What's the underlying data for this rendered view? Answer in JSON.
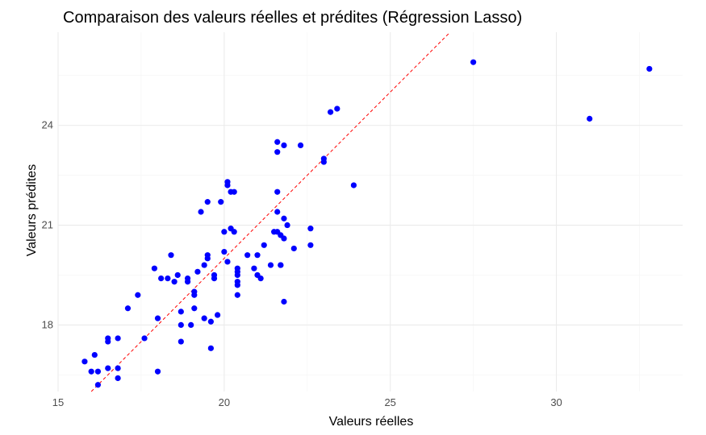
{
  "chart_data": {
    "type": "scatter",
    "title": "Comparaison des valeurs réelles et prédites (Régression Lasso)",
    "xlabel": "Valeurs réelles",
    "ylabel": "Valeurs prédites",
    "xlim": [
      15.0,
      33.8
    ],
    "ylim": [
      16.0,
      26.8
    ],
    "xticks": [
      15,
      20,
      25,
      30
    ],
    "yticks": [
      18,
      21,
      24
    ],
    "grid": true,
    "point_color": "#0000ff",
    "reference_line": {
      "type": "identity",
      "color": "#ff0000",
      "style": "dashed"
    },
    "points": [
      [
        15.8,
        16.9
      ],
      [
        16.0,
        16.6
      ],
      [
        16.1,
        17.1
      ],
      [
        16.2,
        16.6
      ],
      [
        16.2,
        16.2
      ],
      [
        16.5,
        17.6
      ],
      [
        16.5,
        17.5
      ],
      [
        16.5,
        16.7
      ],
      [
        16.8,
        16.7
      ],
      [
        16.8,
        16.4
      ],
      [
        16.8,
        17.6
      ],
      [
        17.1,
        18.5
      ],
      [
        17.4,
        18.9
      ],
      [
        17.6,
        17.6
      ],
      [
        17.9,
        19.7
      ],
      [
        18.0,
        18.2
      ],
      [
        18.0,
        16.6
      ],
      [
        18.1,
        19.4
      ],
      [
        18.3,
        19.4
      ],
      [
        18.4,
        20.1
      ],
      [
        18.5,
        19.3
      ],
      [
        18.6,
        19.5
      ],
      [
        18.7,
        18.4
      ],
      [
        18.7,
        18.0
      ],
      [
        18.7,
        17.5
      ],
      [
        18.9,
        19.3
      ],
      [
        18.9,
        19.4
      ],
      [
        19.0,
        18.0
      ],
      [
        19.1,
        19.0
      ],
      [
        19.1,
        18.9
      ],
      [
        19.1,
        18.5
      ],
      [
        19.2,
        19.6
      ],
      [
        19.3,
        21.4
      ],
      [
        19.4,
        18.2
      ],
      [
        19.4,
        19.8
      ],
      [
        19.5,
        20.0
      ],
      [
        19.5,
        21.7
      ],
      [
        19.5,
        20.1
      ],
      [
        19.6,
        17.3
      ],
      [
        19.6,
        18.1
      ],
      [
        19.7,
        19.4
      ],
      [
        19.7,
        19.5
      ],
      [
        19.8,
        18.3
      ],
      [
        19.9,
        21.7
      ],
      [
        20.0,
        20.8
      ],
      [
        20.0,
        20.2
      ],
      [
        20.1,
        22.3
      ],
      [
        20.1,
        22.2
      ],
      [
        20.1,
        19.9
      ],
      [
        20.2,
        22.0
      ],
      [
        20.2,
        20.9
      ],
      [
        20.3,
        22.0
      ],
      [
        20.3,
        20.8
      ],
      [
        20.4,
        19.6
      ],
      [
        20.4,
        19.5
      ],
      [
        20.4,
        19.7
      ],
      [
        20.4,
        19.3
      ],
      [
        20.4,
        19.2
      ],
      [
        20.4,
        18.9
      ],
      [
        20.7,
        20.1
      ],
      [
        20.9,
        19.7
      ],
      [
        21.0,
        20.1
      ],
      [
        21.0,
        19.5
      ],
      [
        21.1,
        19.4
      ],
      [
        21.2,
        20.4
      ],
      [
        21.4,
        19.8
      ],
      [
        21.5,
        20.8
      ],
      [
        21.6,
        23.5
      ],
      [
        21.6,
        23.2
      ],
      [
        21.6,
        22.0
      ],
      [
        21.6,
        21.4
      ],
      [
        21.6,
        20.8
      ],
      [
        21.7,
        20.7
      ],
      [
        21.7,
        19.8
      ],
      [
        21.7,
        19.8
      ],
      [
        21.8,
        23.4
      ],
      [
        21.8,
        21.2
      ],
      [
        21.8,
        20.6
      ],
      [
        21.8,
        18.7
      ],
      [
        21.9,
        21.0
      ],
      [
        22.1,
        20.3
      ],
      [
        22.3,
        23.4
      ],
      [
        22.6,
        20.9
      ],
      [
        22.6,
        20.4
      ],
      [
        23.0,
        23.0
      ],
      [
        23.0,
        22.9
      ],
      [
        23.2,
        24.4
      ],
      [
        23.4,
        24.5
      ],
      [
        23.9,
        22.2
      ],
      [
        27.5,
        25.9
      ],
      [
        31.0,
        24.2
      ],
      [
        32.8,
        25.7
      ]
    ]
  }
}
